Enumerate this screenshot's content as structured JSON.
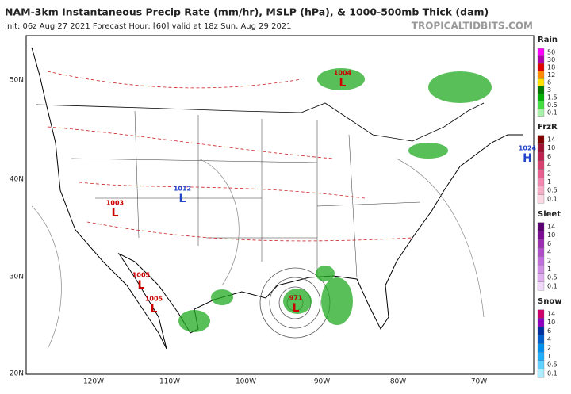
{
  "header": {
    "title": "NAM-3km Instantaneous Precip Rate (mm/hr), MSLP (hPa), & 1000-500mb Thick (dam)",
    "subtitle": "Init: 06z Aug 27 2021   Forecast Hour: [60]   valid at 18z Sun, Aug 29 2021",
    "site": "TROPICALTIDBITS.COM"
  },
  "map": {
    "lat_labels": [
      "50N",
      "40N",
      "30N",
      "20N"
    ],
    "lon_labels": [
      "120W",
      "110W",
      "100W",
      "90W",
      "80W",
      "70W"
    ],
    "pressure_labels": [
      {
        "symbol": "L",
        "text": "1004",
        "color": "#cc0000"
      },
      {
        "symbol": "L",
        "text": "1003",
        "color": "#cc0000"
      },
      {
        "symbol": "L",
        "text": "1005",
        "color": "#cc0000"
      },
      {
        "symbol": "L",
        "text": "1005",
        "color": "#cc0000"
      },
      {
        "symbol": "L",
        "text": "1012",
        "color": "#2244cc"
      },
      {
        "symbol": "L",
        "text": "971",
        "color": "#cc0000"
      },
      {
        "symbol": "H",
        "text": "1024",
        "color": "#2244cc"
      }
    ]
  },
  "legend": [
    {
      "name": "Rain",
      "labels": [
        "50",
        "30",
        "18",
        "12",
        "6",
        "3",
        "1.5",
        "0.5",
        "0.1"
      ],
      "colors": [
        "#ff00ff",
        "#b000b0",
        "#e00000",
        "#ff8c00",
        "#ffe000",
        "#007a00",
        "#00b000",
        "#44dd44",
        "#aaf0aa"
      ]
    },
    {
      "name": "FrzR",
      "labels": [
        "14",
        "10",
        "6",
        "4",
        "2",
        "1",
        "0.5",
        "0.1"
      ],
      "colors": [
        "#800000",
        "#a01030",
        "#c02050",
        "#d84070",
        "#e86090",
        "#f088b0",
        "#f8b0c8",
        "#fcd8e4"
      ]
    },
    {
      "name": "Sleet",
      "labels": [
        "14",
        "10",
        "6",
        "4",
        "2",
        "1",
        "0.5",
        "0.1"
      ],
      "colors": [
        "#5a0070",
        "#7a1090",
        "#9a30b0",
        "#b050c8",
        "#c070d8",
        "#d090e4",
        "#e0b0f0",
        "#f0d8fa"
      ]
    },
    {
      "name": "Snow",
      "labels": [
        "14",
        "10",
        "6",
        "4",
        "2",
        "1",
        "0.5",
        "0.1"
      ],
      "colors": [
        "#d0006a",
        "#9000c0",
        "#0030a0",
        "#0060d0",
        "#0090f0",
        "#20b0ff",
        "#60d0ff",
        "#b0ecff"
      ]
    }
  ]
}
